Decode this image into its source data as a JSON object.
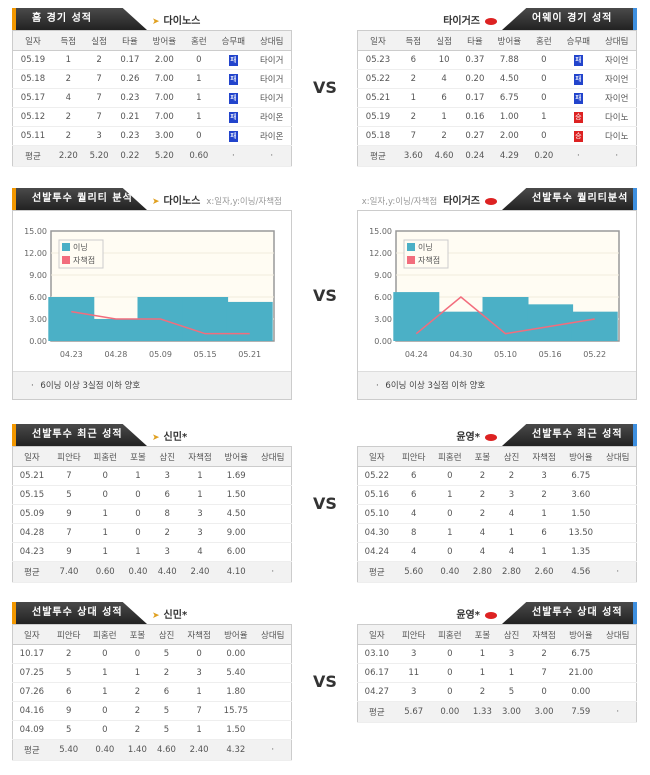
{
  "vs_label": "VS",
  "home": {
    "title": "홈 경기 성적",
    "team": "다이노스",
    "columns": [
      "일자",
      "득점",
      "실점",
      "타율",
      "방어율",
      "홈런",
      "승무패",
      "상대팀"
    ],
    "rows": [
      [
        "05.19",
        "1",
        "2",
        "0.17",
        "2.00",
        "0",
        "패",
        "타이거"
      ],
      [
        "05.18",
        "2",
        "7",
        "0.26",
        "7.00",
        "1",
        "패",
        "타이거"
      ],
      [
        "05.17",
        "4",
        "7",
        "0.23",
        "7.00",
        "1",
        "패",
        "타이거"
      ],
      [
        "05.12",
        "2",
        "7",
        "0.21",
        "7.00",
        "1",
        "패",
        "라이온"
      ],
      [
        "05.11",
        "2",
        "3",
        "0.23",
        "3.00",
        "0",
        "패",
        "라이온"
      ]
    ],
    "avg": [
      "평균",
      "2.20",
      "5.20",
      "0.22",
      "5.20",
      "0.60",
      "·",
      "·"
    ]
  },
  "away": {
    "title": "어웨이 경기 성적",
    "team": "타이거즈",
    "columns": [
      "일자",
      "득점",
      "실점",
      "타율",
      "방어율",
      "홈런",
      "승무패",
      "상대팀"
    ],
    "rows": [
      [
        "05.23",
        "6",
        "10",
        "0.37",
        "7.88",
        "0",
        "패",
        "자이언"
      ],
      [
        "05.22",
        "2",
        "4",
        "0.20",
        "4.50",
        "0",
        "패",
        "자이언"
      ],
      [
        "05.21",
        "1",
        "6",
        "0.17",
        "6.75",
        "0",
        "패",
        "자이언"
      ],
      [
        "05.19",
        "2",
        "1",
        "0.16",
        "1.00",
        "1",
        "승",
        "다이노"
      ],
      [
        "05.18",
        "7",
        "2",
        "0.27",
        "2.00",
        "0",
        "승",
        "다이노"
      ]
    ],
    "avg": [
      "평균",
      "3.60",
      "4.60",
      "0.24",
      "4.29",
      "0.20",
      "·",
      "·"
    ]
  },
  "colors": {
    "loss": "#2244cc",
    "win": "#dd2222",
    "bar": "#4bb0c6",
    "line": "#f26d7d"
  },
  "quality_left": {
    "title": "선발투수 퀄리티 분석",
    "team": "다이노스",
    "axis_note": "x:일자,y:이닝/자책점",
    "footer": "6이닝 이상 3실점 이하 양호"
  },
  "quality_right": {
    "title": "선발투수 퀄리티분석",
    "team": "타이거즈",
    "axis_note": "x:일자,y:이닝/자책점",
    "footer": "6이닝 이상 3실점 이하 양호"
  },
  "chart_data": [
    {
      "type": "bar",
      "categories": [
        "04.23",
        "04.28",
        "05.09",
        "05.15",
        "05.21"
      ],
      "ylim": [
        0,
        15
      ],
      "yticks": [
        "0.00",
        "3.00",
        "6.00",
        "9.00",
        "12.00",
        "15.00"
      ],
      "grid": true,
      "legend": "top-left",
      "series": [
        {
          "name": "이닝",
          "type": "bar",
          "values": [
            6,
            3,
            6,
            6,
            5.33
          ]
        },
        {
          "name": "자책점",
          "type": "line",
          "values": [
            4,
            3,
            3,
            1,
            1
          ]
        }
      ]
    },
    {
      "type": "bar",
      "categories": [
        "04.24",
        "04.30",
        "05.10",
        "05.16",
        "05.22"
      ],
      "ylim": [
        0,
        15
      ],
      "yticks": [
        "0.00",
        "3.00",
        "6.00",
        "9.00",
        "12.00",
        "15.00"
      ],
      "grid": true,
      "legend": "top-left",
      "series": [
        {
          "name": "이닝",
          "type": "bar",
          "values": [
            6.67,
            4,
            6,
            5,
            4
          ]
        },
        {
          "name": "자책점",
          "type": "line",
          "values": [
            1,
            6,
            1,
            2,
            3
          ]
        }
      ]
    }
  ],
  "recent_left": {
    "title": "선발투수 최근 성적",
    "team": "신민*",
    "columns": [
      "일자",
      "피안타",
      "피홈런",
      "포볼",
      "삼진",
      "자책점",
      "방어율",
      "상대팀"
    ],
    "rows": [
      [
        "05.21",
        "7",
        "0",
        "1",
        "3",
        "1",
        "1.69",
        ""
      ],
      [
        "05.15",
        "5",
        "0",
        "0",
        "6",
        "1",
        "1.50",
        ""
      ],
      [
        "05.09",
        "9",
        "1",
        "0",
        "8",
        "3",
        "4.50",
        ""
      ],
      [
        "04.28",
        "7",
        "1",
        "0",
        "2",
        "3",
        "9.00",
        ""
      ],
      [
        "04.23",
        "9",
        "1",
        "1",
        "3",
        "4",
        "6.00",
        ""
      ]
    ],
    "avg": [
      "평균",
      "7.40",
      "0.60",
      "0.40",
      "4.40",
      "2.40",
      "4.10",
      "·"
    ]
  },
  "recent_right": {
    "title": "선발투수 최근 성적",
    "team": "윤영*",
    "columns": [
      "일자",
      "피안타",
      "피홈런",
      "포볼",
      "삼진",
      "자책점",
      "방어율",
      "상대팀"
    ],
    "rows": [
      [
        "05.22",
        "6",
        "0",
        "2",
        "2",
        "3",
        "6.75",
        ""
      ],
      [
        "05.16",
        "6",
        "1",
        "2",
        "3",
        "2",
        "3.60",
        ""
      ],
      [
        "05.10",
        "4",
        "0",
        "2",
        "4",
        "1",
        "1.50",
        ""
      ],
      [
        "04.30",
        "8",
        "1",
        "4",
        "1",
        "6",
        "13.50",
        ""
      ],
      [
        "04.24",
        "4",
        "0",
        "4",
        "4",
        "1",
        "1.35",
        ""
      ]
    ],
    "avg": [
      "평균",
      "5.60",
      "0.40",
      "2.80",
      "2.80",
      "2.60",
      "4.56",
      "·"
    ]
  },
  "vs_left": {
    "title": "선발투수 상대 성적",
    "team": "신민*",
    "columns": [
      "일자",
      "피안타",
      "피홈런",
      "포볼",
      "삼진",
      "자책점",
      "방어율",
      "상대팀"
    ],
    "rows": [
      [
        "10.17",
        "2",
        "0",
        "0",
        "5",
        "0",
        "0.00",
        ""
      ],
      [
        "07.25",
        "5",
        "1",
        "1",
        "2",
        "3",
        "5.40",
        ""
      ],
      [
        "07.26",
        "6",
        "1",
        "2",
        "6",
        "1",
        "1.80",
        ""
      ],
      [
        "04.16",
        "9",
        "0",
        "2",
        "5",
        "7",
        "15.75",
        ""
      ],
      [
        "04.09",
        "5",
        "0",
        "2",
        "5",
        "1",
        "1.50",
        ""
      ]
    ],
    "avg": [
      "평균",
      "5.40",
      "0.40",
      "1.40",
      "4.60",
      "2.40",
      "4.32",
      "·"
    ]
  },
  "vs_right": {
    "title": "선발투수 상대 성적",
    "team": "윤영*",
    "columns": [
      "일자",
      "피안타",
      "피홈런",
      "포볼",
      "삼진",
      "자책점",
      "방어율",
      "상대팀"
    ],
    "rows": [
      [
        "03.10",
        "3",
        "0",
        "1",
        "3",
        "2",
        "6.75",
        ""
      ],
      [
        "06.17",
        "11",
        "0",
        "1",
        "1",
        "7",
        "21.00",
        ""
      ],
      [
        "04.27",
        "3",
        "0",
        "2",
        "5",
        "0",
        "0.00",
        ""
      ]
    ],
    "avg": [
      "평균",
      "5.67",
      "0.00",
      "1.33",
      "3.00",
      "3.00",
      "7.59",
      "·"
    ]
  }
}
